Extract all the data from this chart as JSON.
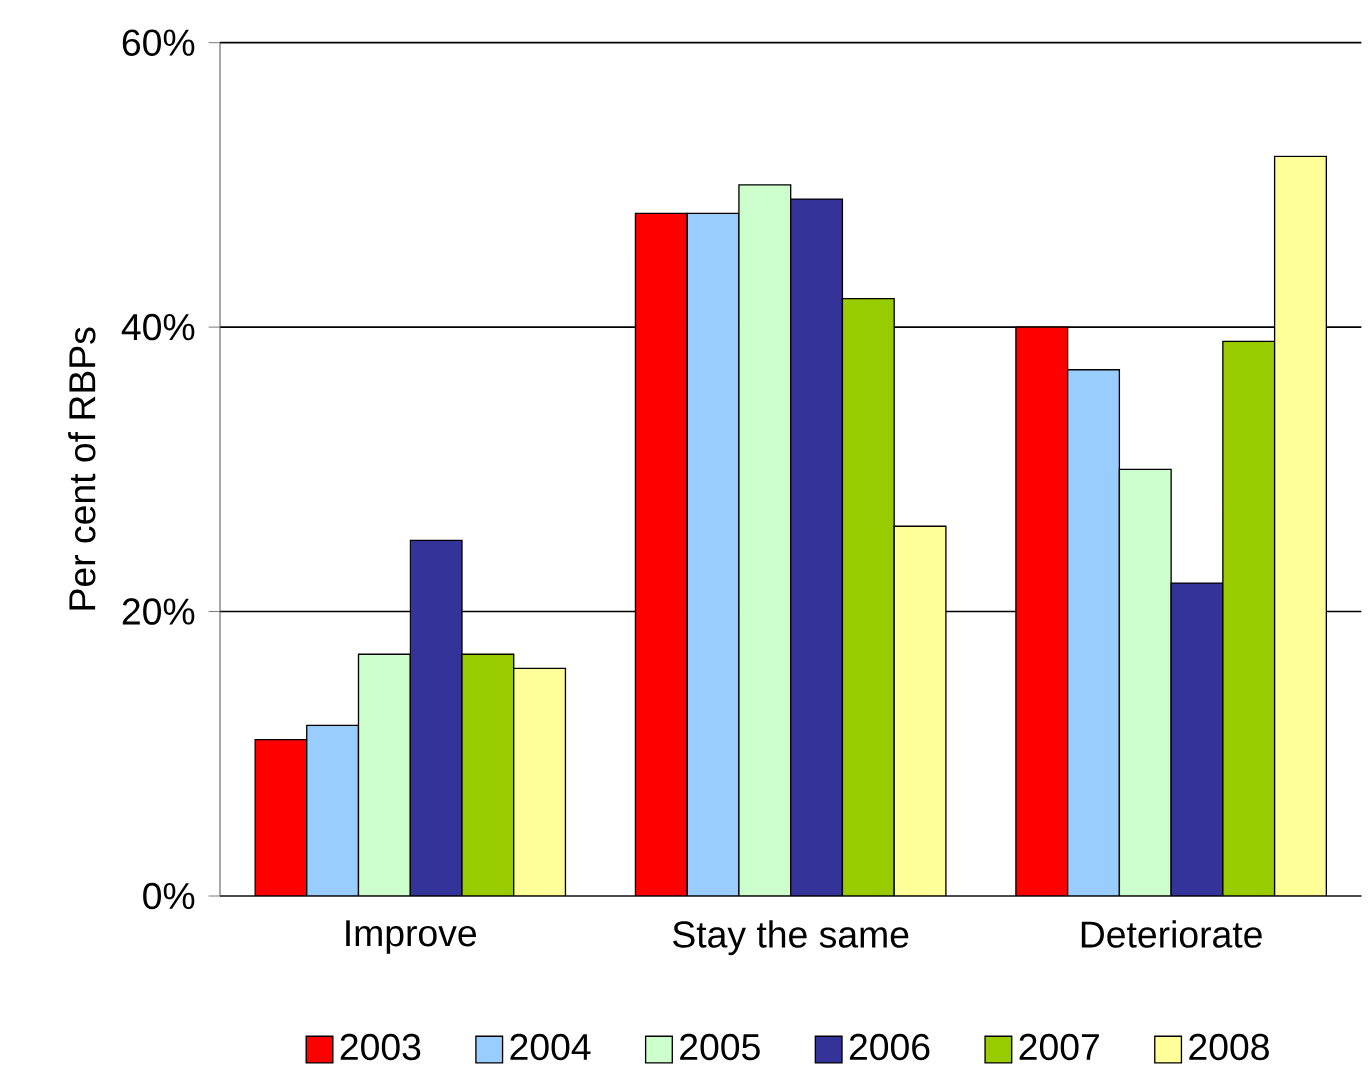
{
  "chart_data": {
    "type": "bar",
    "ylabel": "Per cent of RBPs",
    "categories": [
      "Improve",
      "Stay the same",
      "Deteriorate"
    ],
    "series": [
      {
        "name": "2003",
        "color": "#ff0000",
        "values": [
          11,
          48,
          40
        ]
      },
      {
        "name": "2004",
        "color": "#99ccff",
        "values": [
          12,
          48,
          37
        ]
      },
      {
        "name": "2005",
        "color": "#ccffcc",
        "values": [
          17,
          50,
          30
        ]
      },
      {
        "name": "2006",
        "color": "#333399",
        "values": [
          25,
          49,
          22
        ]
      },
      {
        "name": "2007",
        "color": "#99cc00",
        "values": [
          17,
          42,
          39
        ]
      },
      {
        "name": "2008",
        "color": "#ffff99",
        "values": [
          16,
          26,
          52
        ]
      }
    ],
    "ylim": [
      0,
      60
    ],
    "yticks": [
      {
        "value": 0,
        "label": "0%"
      },
      {
        "value": 20,
        "label": "20%"
      },
      {
        "value": 40,
        "label": "40%"
      },
      {
        "value": 60,
        "label": "60%"
      }
    ],
    "grid": "y",
    "legend": "bottom"
  }
}
